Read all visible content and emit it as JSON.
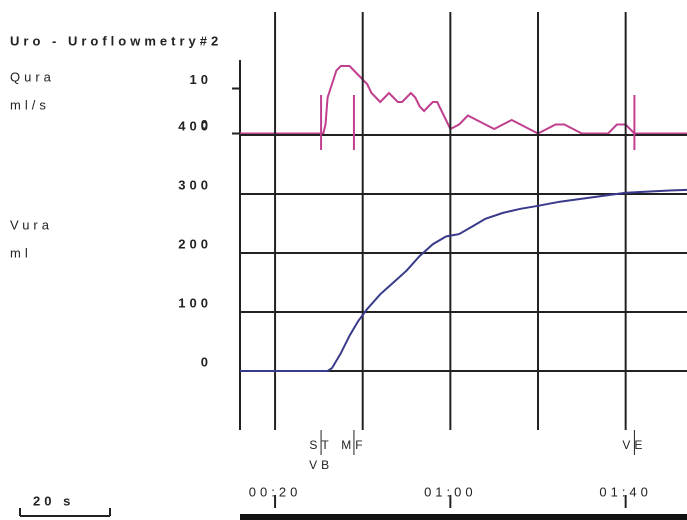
{
  "title": "Uro - Uroflowmetry#2",
  "scale_bar": "20 s",
  "chart_data": [
    {
      "type": "line",
      "y_label": [
        "Qura",
        "ml/s"
      ],
      "color": "#c0408f",
      "x": [
        12,
        31,
        31.5,
        32,
        33,
        34,
        35,
        36,
        37,
        38,
        39,
        40,
        41,
        42,
        43,
        44,
        45,
        46,
        47,
        48,
        49,
        50,
        51,
        52,
        53,
        54,
        55,
        56,
        57,
        58,
        59,
        60,
        62,
        64,
        66,
        68,
        70,
        72,
        74,
        76,
        78,
        80,
        82,
        84,
        86,
        88,
        90,
        96,
        98,
        100,
        101,
        102,
        114
      ],
      "values": [
        0,
        0,
        2,
        8,
        11,
        14,
        15,
        15,
        15,
        14,
        13,
        12,
        11,
        9,
        8,
        7,
        8,
        9,
        8,
        7,
        7,
        8,
        9,
        8,
        6,
        5,
        6,
        7,
        7,
        5,
        3,
        1,
        2,
        4,
        3,
        2,
        1,
        2,
        3,
        2,
        1,
        0,
        1,
        2,
        2,
        1,
        0,
        0,
        2,
        2,
        1,
        0,
        0
      ],
      "xlim": [
        12,
        114
      ],
      "ylim": [
        -3,
        27
      ],
      "yticks": [
        0,
        10
      ]
    },
    {
      "type": "line",
      "y_label": [
        "Vura",
        "ml"
      ],
      "color": "#3a3a8c",
      "x": [
        12,
        32,
        33,
        35,
        37,
        39,
        41,
        44,
        47,
        50,
        53,
        56,
        59,
        62,
        65,
        68,
        72,
        76,
        80,
        85,
        90,
        95,
        100,
        105,
        110,
        114
      ],
      "values": [
        0,
        0,
        5,
        30,
        60,
        85,
        105,
        130,
        150,
        170,
        195,
        215,
        228,
        232,
        245,
        258,
        268,
        275,
        280,
        287,
        292,
        297,
        302,
        304,
        306,
        307
      ],
      "xlim": [
        12,
        114
      ],
      "ylim": [
        -100,
        400
      ],
      "yticks": [
        0,
        100,
        200,
        300,
        400
      ],
      "grid": true,
      "xticks": [
        {
          "value": 20,
          "label": "00:20"
        },
        {
          "value": 60,
          "label": "01:00"
        },
        {
          "value": 100,
          "label": "01:40"
        }
      ],
      "xgrid": [
        20,
        40,
        60,
        80,
        100
      ],
      "events": [
        {
          "label": "ST",
          "x": 30.5
        },
        {
          "label": "VB",
          "x": 30.5
        },
        {
          "label": "MF",
          "x": 38
        },
        {
          "label": "VE",
          "x": 102
        }
      ]
    }
  ]
}
